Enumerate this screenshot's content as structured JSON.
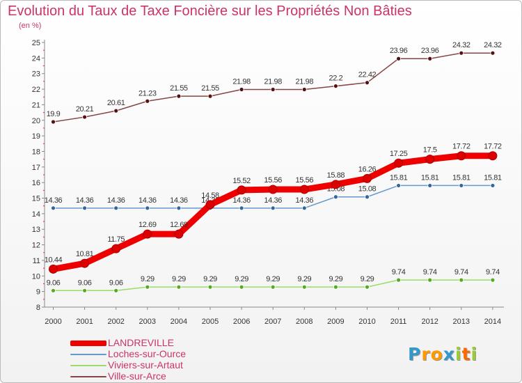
{
  "title": "Evolution du Taux de Taxe Foncière sur les Propriétés Non Bâties",
  "unit_label": "(en %)",
  "brand": "Proxiti",
  "chart_data": {
    "type": "line",
    "title": "Evolution du Taux de Taxe Foncière sur les Propriétés Non Bâties",
    "ylabel": "(en %)",
    "xlabel": "",
    "ylim": [
      8,
      25
    ],
    "yticks": [
      8,
      9,
      10,
      11,
      12,
      13,
      14,
      15,
      16,
      17,
      18,
      19,
      20,
      21,
      22,
      23,
      24,
      25
    ],
    "categories": [
      "2000",
      "2001",
      "2002",
      "2003",
      "2004",
      "2005",
      "2006",
      "2007",
      "2008",
      "2009",
      "2010",
      "2011",
      "2012",
      "2013",
      "2014"
    ],
    "series": [
      {
        "name": "LANDREVILLE",
        "color": "#ee0000",
        "values": [
          10.44,
          10.81,
          11.75,
          12.69,
          12.69,
          14.58,
          15.52,
          15.56,
          15.56,
          15.88,
          16.26,
          17.25,
          17.5,
          17.72,
          17.72
        ]
      },
      {
        "name": "Loches-sur-Ource",
        "color": "#6699cc",
        "values": [
          14.36,
          14.36,
          14.36,
          14.36,
          14.36,
          14.36,
          14.36,
          14.36,
          14.36,
          15.08,
          15.08,
          15.81,
          15.81,
          15.81,
          15.81
        ]
      },
      {
        "name": "Viviers-sur-Artaut",
        "color": "#99dd66",
        "values": [
          9.06,
          9.06,
          9.06,
          9.29,
          9.29,
          9.29,
          9.29,
          9.29,
          9.29,
          9.29,
          9.29,
          9.74,
          9.74,
          9.74,
          9.74
        ]
      },
      {
        "name": "Ville-sur-Arce",
        "color": "#884444",
        "values": [
          19.9,
          20.21,
          20.61,
          21.23,
          21.55,
          21.55,
          21.98,
          21.98,
          21.98,
          22.2,
          22.42,
          23.96,
          23.96,
          24.32,
          24.32
        ]
      }
    ],
    "grid": false,
    "legend": "bottom-left"
  }
}
